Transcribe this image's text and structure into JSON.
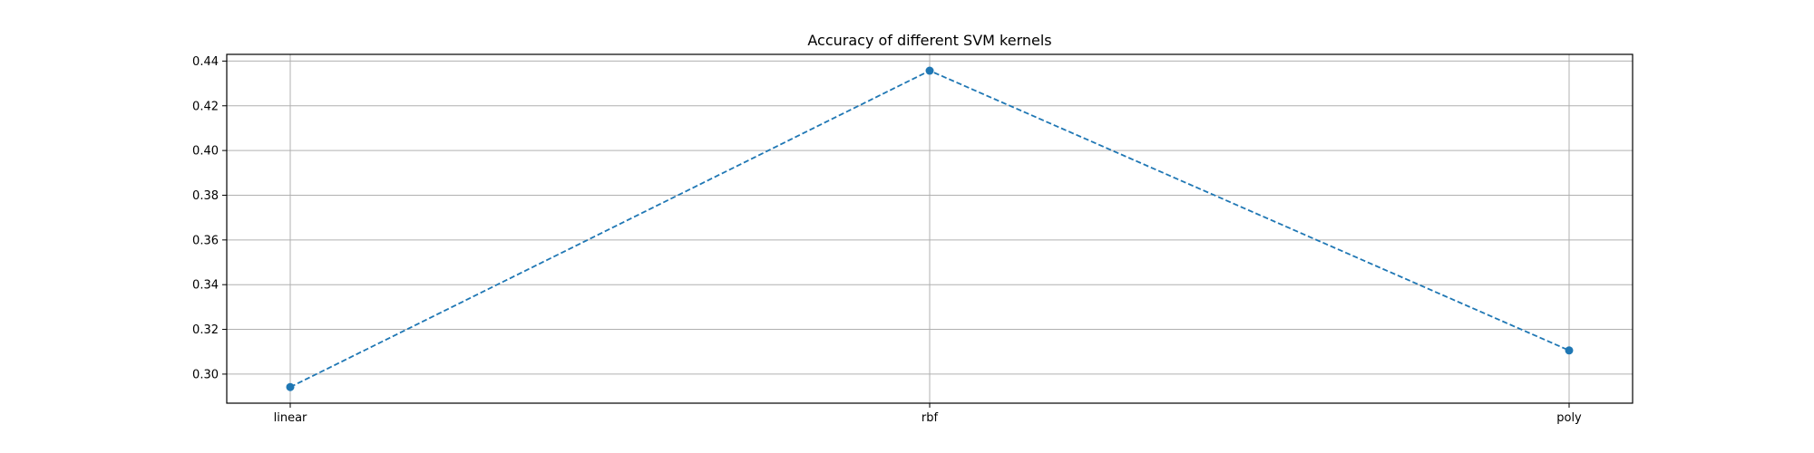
{
  "chart_data": {
    "type": "line",
    "title": "Accuracy of different SVM kernels",
    "xlabel": "",
    "ylabel": "",
    "categories": [
      "linear",
      "rbf",
      "poly"
    ],
    "series": [
      {
        "values": [
          0.2942,
          0.4357,
          0.3106
        ],
        "color": "#1f77b4",
        "line_style": "dashed",
        "marker": "circle"
      }
    ],
    "ylim": [
      0.287,
      0.443
    ],
    "yticks": [
      0.3,
      0.32,
      0.34,
      0.36,
      0.38,
      0.4,
      0.42,
      0.44
    ],
    "ytick_labels": [
      "0.30",
      "0.32",
      "0.34",
      "0.36",
      "0.38",
      "0.40",
      "0.42",
      "0.44"
    ],
    "grid": true,
    "legend": "none"
  }
}
